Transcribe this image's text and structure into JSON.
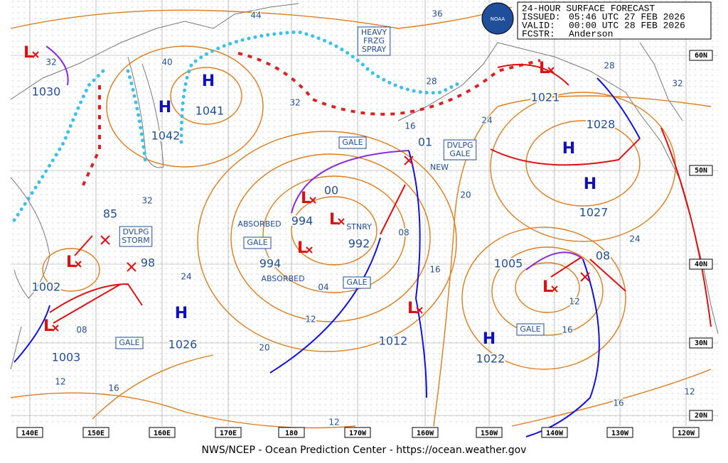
{
  "header": {
    "title": "24-HOUR SURFACE FORECAST",
    "issued_label": "ISSUED:",
    "issued": "05:46 UTC 27 FEB 2026",
    "valid_label": "VALID:",
    "valid": "00:00 UTC 28 FEB 2026",
    "fcstr_label": "FCSTR:",
    "fcstr": "Anderson",
    "logo": "NOAA"
  },
  "center_symbols": [
    "H",
    "H",
    "H",
    "H",
    "H",
    "H",
    "L",
    "L",
    "L",
    "L",
    "L",
    "L",
    "L",
    "L",
    "L"
  ],
  "pressure_labels": [
    "1030",
    "1041",
    "1042",
    "1021",
    "1028",
    "1027",
    "994",
    "992",
    "994",
    "1002",
    "1026",
    "1003",
    "1012",
    "1005",
    "1022",
    "85",
    "98",
    "01",
    "08",
    "00"
  ],
  "isobar_labels": [
    "44",
    "36",
    "40",
    "32",
    "32",
    "28",
    "28",
    "32",
    "24",
    "16",
    "20",
    "24",
    "32",
    "24",
    "08",
    "16",
    "04",
    "12",
    "20",
    "08",
    "12",
    "16",
    "12",
    "16",
    "16",
    "12",
    "12"
  ],
  "boxes": [
    [
      "HEAVY",
      "FRZG",
      "SPRAY"
    ],
    [
      "GALE"
    ],
    [
      "DVLPG",
      "GALE"
    ],
    [
      "DVLPG",
      "STORM"
    ],
    [
      "GALE"
    ],
    [
      "GALE"
    ],
    [
      "GALE"
    ],
    [
      "GALE"
    ]
  ],
  "notes": [
    "ABSORBED",
    "ABSORBED",
    "STNRY",
    "NEW"
  ],
  "lon_labels": [
    "140E",
    "150E",
    "160E",
    "170E",
    "180",
    "170W",
    "160W",
    "150W",
    "140W",
    "130W",
    "120W"
  ],
  "lat_labels": [
    "60N",
    "50N",
    "40N",
    "30N",
    "20N"
  ],
  "footer": "NWS/NCEP - Ocean Prediction Center - https://ocean.weather.gov"
}
